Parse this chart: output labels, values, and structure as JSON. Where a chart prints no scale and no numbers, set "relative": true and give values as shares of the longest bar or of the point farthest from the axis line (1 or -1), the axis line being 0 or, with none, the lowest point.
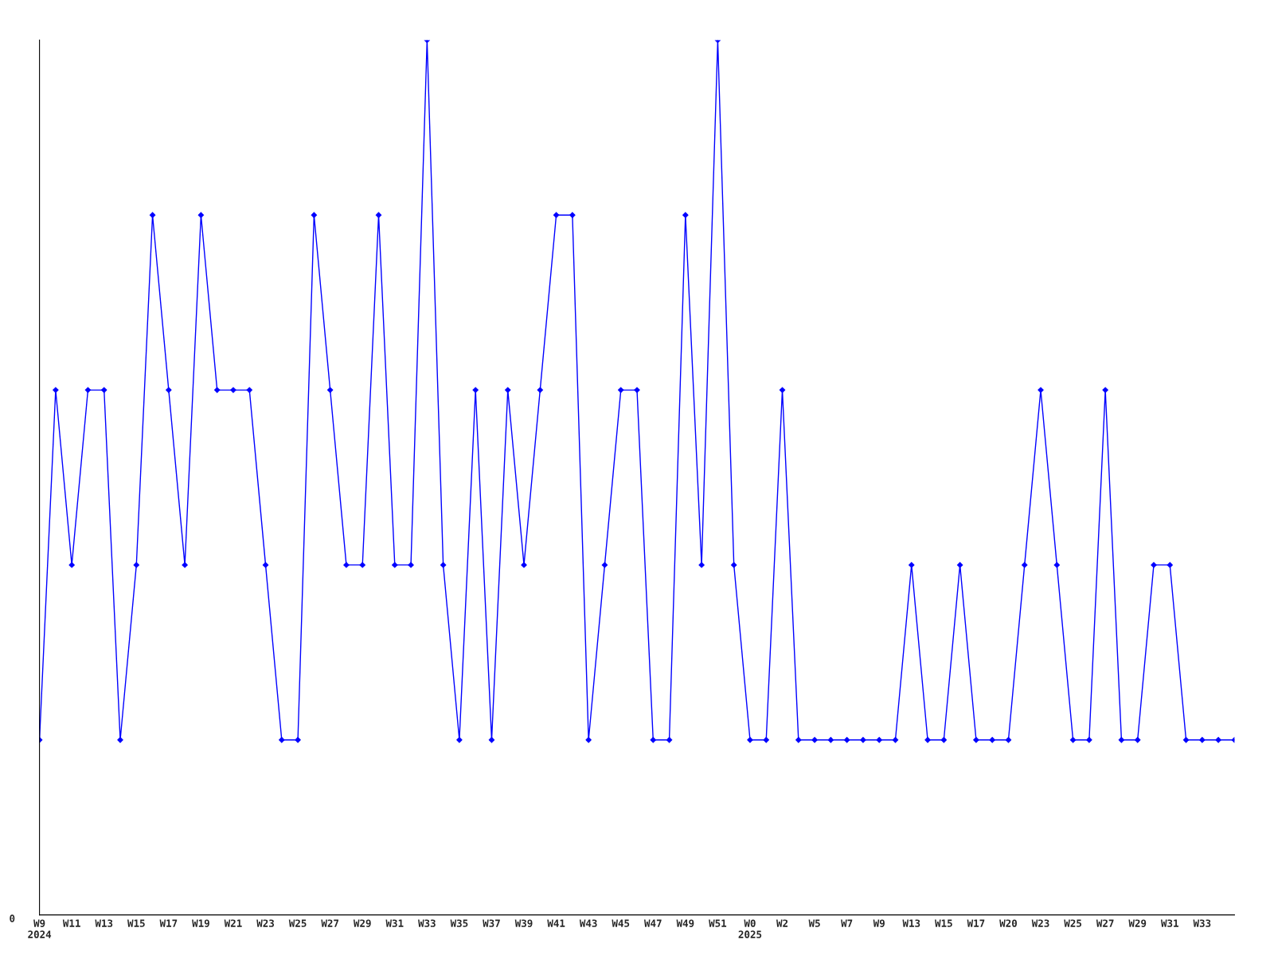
{
  "chart_data": {
    "type": "line",
    "relative": true,
    "annotations": [
      "0"
    ],
    "categories": [
      "W9\n2024",
      null,
      "W11",
      null,
      "W13",
      null,
      "W15",
      null,
      "W17",
      null,
      "W19",
      null,
      "W21",
      null,
      "W23",
      null,
      "W25",
      null,
      "W27",
      null,
      "W29",
      null,
      "W31",
      null,
      "W33",
      null,
      "W35",
      null,
      "W37",
      null,
      "W39",
      null,
      "W41",
      null,
      "W43",
      null,
      "W45",
      null,
      "W47",
      null,
      "W49",
      null,
      "W51",
      null,
      "W0\n2025",
      null,
      "W2",
      null,
      "W5",
      null,
      "W7",
      null,
      "W9",
      null,
      "W13",
      null,
      "W15",
      null,
      "W17",
      null,
      "W20",
      null,
      "W23",
      null,
      "W25",
      null,
      "W27",
      null,
      "W29",
      null,
      "W31",
      null,
      "W33",
      null,
      null
    ],
    "series": [
      {
        "color": "#0000ff",
        "values": [
          0.2,
          0.6,
          0.4,
          0.6,
          0.6,
          0.2,
          0.4,
          0.8,
          0.6,
          0.4,
          0.8,
          0.6,
          0.6,
          0.6,
          0.4,
          0.2,
          0.2,
          0.8,
          0.6,
          0.4,
          0.4,
          0.8,
          0.4,
          0.4,
          1.0,
          0.4,
          0.2,
          0.6,
          0.2,
          0.6,
          0.4,
          0.6,
          0.8,
          0.8,
          0.2,
          0.4,
          0.6,
          0.6,
          0.2,
          0.2,
          0.8,
          0.4,
          1.0,
          0.4,
          0.2,
          0.2,
          0.6,
          0.2,
          0.2,
          0.2,
          0.2,
          0.2,
          0.2,
          0.2,
          0.4,
          0.2,
          0.2,
          0.4,
          0.2,
          0.2,
          0.2,
          0.4,
          0.6,
          0.4,
          0.2,
          0.2,
          0.6,
          0.2,
          0.2,
          0.4,
          0.4,
          0.2,
          0.2,
          0.2,
          0.2
        ]
      }
    ],
    "marker": "diamond",
    "line_style": "solid",
    "grid": false,
    "legend": false
  }
}
